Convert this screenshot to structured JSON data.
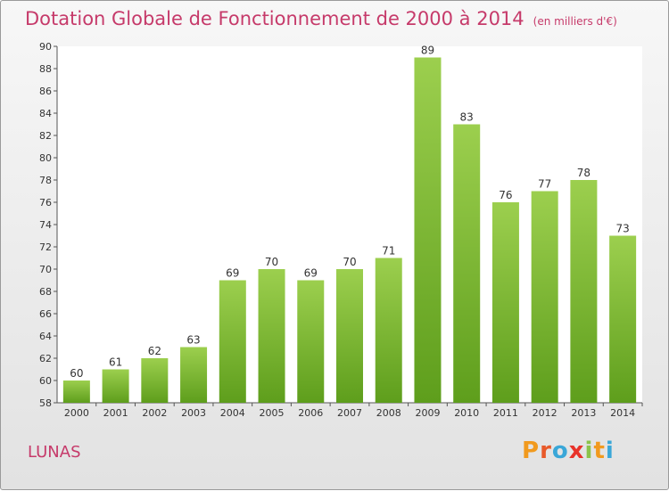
{
  "header": {
    "title": "Dotation Globale de Fonctionnement de 2000 à 2014",
    "subtitle": "(en milliers d'€)"
  },
  "footer": {
    "commune": "LUNAS",
    "logo_text": "Proxiti"
  },
  "colors": {
    "title": "#c63a6a",
    "bar_top": "#9ccf4e",
    "bar_bottom": "#5e9e1c",
    "logo": [
      "#f19a1e",
      "#e85a2a",
      "#3aa7d8",
      "#e8322a",
      "#8bc34a",
      "#f19a1e",
      "#3aa7d8"
    ]
  },
  "chart_data": {
    "type": "bar",
    "categories": [
      "2000",
      "2001",
      "2002",
      "2003",
      "2004",
      "2005",
      "2006",
      "2007",
      "2008",
      "2009",
      "2010",
      "2011",
      "2012",
      "2013",
      "2014"
    ],
    "values": [
      60,
      61,
      62,
      63,
      69,
      70,
      69,
      70,
      71,
      89,
      83,
      76,
      77,
      78,
      73
    ],
    "yticks": [
      58,
      60,
      62,
      64,
      66,
      68,
      70,
      72,
      74,
      76,
      78,
      80,
      82,
      84,
      86,
      88,
      90
    ],
    "ylim": [
      58,
      90
    ],
    "grid": false,
    "legend": "none"
  }
}
